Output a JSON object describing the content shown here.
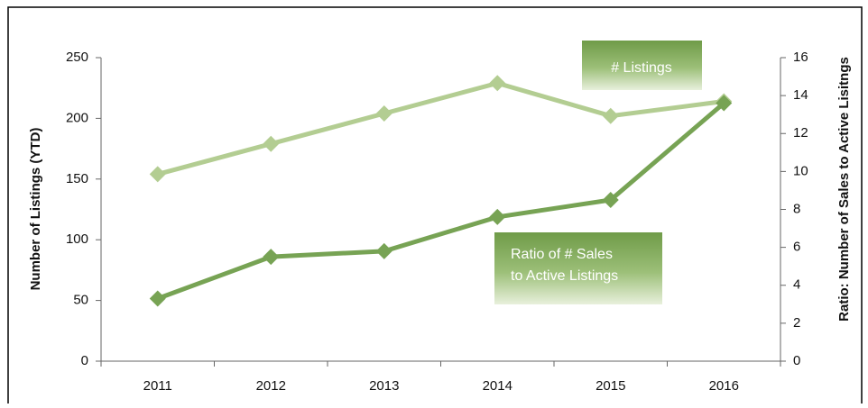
{
  "chart_data": {
    "type": "line",
    "categories": [
      "2011",
      "2012",
      "2013",
      "2014",
      "2015",
      "2016"
    ],
    "series": [
      {
        "name": "# Listings",
        "color": "#b3cd92",
        "values": [
          154,
          179,
          204,
          229,
          202,
          214
        ]
      },
      {
        "name": "Ratio of # Sales to Active Listings",
        "name_lines": [
          "Ratio of # Sales",
          "to Active Listings"
        ],
        "color": "#77a354",
        "axis": "y2",
        "values": [
          3.3,
          5.5,
          5.8,
          7.6,
          8.5,
          13.6
        ]
      }
    ],
    "ylabel": "Number of Listings (YTD)",
    "y2label": "Ratio: Number of Sales to Active Lisitngs",
    "ylim": [
      0,
      250
    ],
    "yticks": [
      0,
      50,
      100,
      150,
      200,
      250
    ],
    "y2lim": [
      0,
      16
    ],
    "y2ticks": [
      0,
      2,
      4,
      6,
      8,
      10,
      12,
      14,
      16
    ]
  }
}
